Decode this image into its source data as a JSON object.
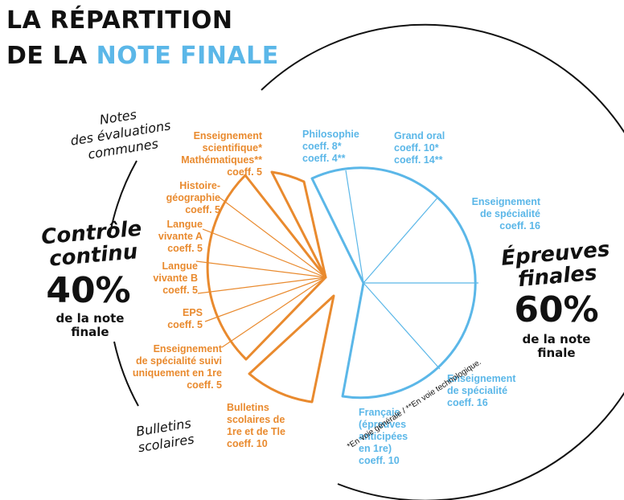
{
  "title": {
    "line1": "LA RÉPARTITION",
    "line2_part1": "DE LA ",
    "line2_part2": "NOTE FINALE"
  },
  "colors": {
    "orange": "#e98a2e",
    "blue": "#5bb7e8",
    "text": "#111111"
  },
  "left_group": {
    "notes_label": [
      "Notes",
      "des évaluations",
      "communes"
    ],
    "title": [
      "Contrôle",
      "continu"
    ],
    "percent": "40%",
    "sub": [
      "de la note",
      "finale"
    ],
    "bulletins_label": [
      "Bulletins",
      "scolaires"
    ]
  },
  "right_group": {
    "title": [
      "Épreuves",
      "finales"
    ],
    "percent": "60%",
    "sub": [
      "de la note",
      "finale"
    ]
  },
  "continu_items": [
    {
      "lines": [
        "Enseignement",
        "scientifique*",
        "Mathématiques**",
        "coeff. 5"
      ]
    },
    {
      "lines": [
        "Histoire-",
        "géographie",
        "coeff. 5"
      ]
    },
    {
      "lines": [
        "Langue",
        "vivante A",
        "coeff. 5"
      ]
    },
    {
      "lines": [
        "Langue",
        "vivante B",
        "coeff. 5"
      ]
    },
    {
      "lines": [
        "EPS",
        "coeff. 5"
      ]
    },
    {
      "lines": [
        "Enseignement",
        "de spécialité suivi",
        "uniquement en 1re",
        "coeff. 5"
      ]
    },
    {
      "lines": [
        "Bulletins",
        "scolaires de",
        "1re et de Tle",
        "coeff. 10"
      ]
    }
  ],
  "finales_items": [
    {
      "lines": [
        "Philosophie",
        "coeff. 8*",
        "coeff. 4**"
      ]
    },
    {
      "lines": [
        "Grand oral",
        "coeff. 10*",
        "coeff. 14**"
      ]
    },
    {
      "lines": [
        "Enseignement",
        "de spécialité",
        "coeff. 16"
      ]
    },
    {
      "lines": [
        "Enseignement",
        "de spécialité",
        "coeff. 16"
      ]
    },
    {
      "lines": [
        "Français",
        "(épreuves",
        "anticipées",
        "en 1re)",
        "coeff. 10"
      ]
    }
  ],
  "footnote": "*En voie générale / **En voie technologique."
}
